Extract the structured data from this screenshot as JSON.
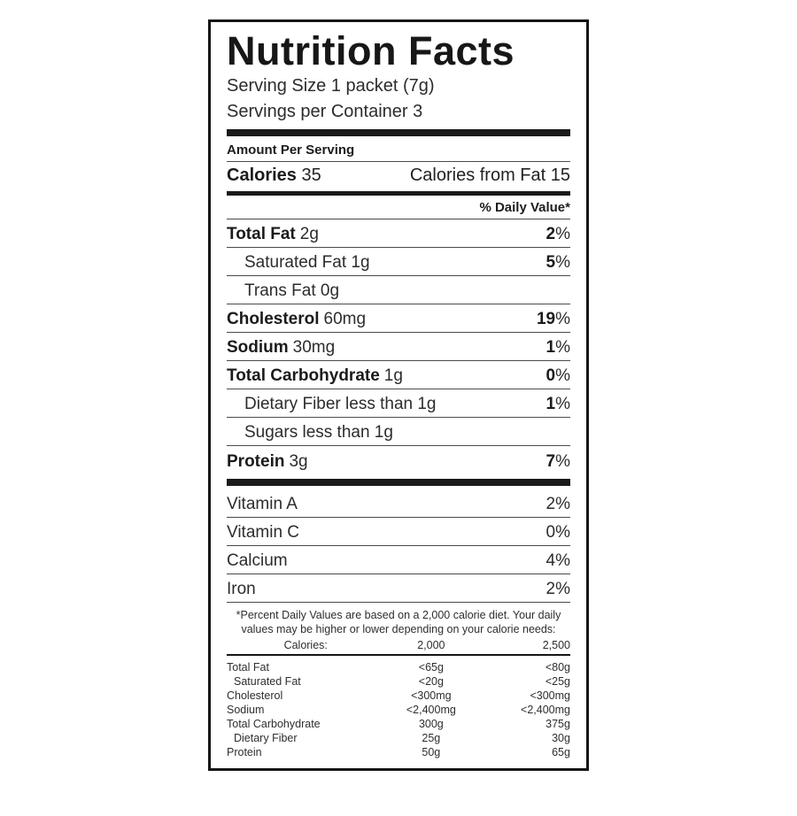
{
  "label": {
    "title": "Nutrition Facts",
    "serving_size": "Serving Size 1 packet (7g)",
    "servings_per_container": "Servings per Container 3",
    "amount_per_serving": "Amount Per Serving",
    "calories": {
      "label": "Calories",
      "value": "35",
      "from_fat": "Calories from Fat 15"
    },
    "daily_value_header": "% Daily Value*",
    "percent_sign": "%",
    "nutrients": [
      {
        "name": "Total Fat",
        "amount": "2g",
        "dv": "2"
      },
      {
        "name": "Saturated Fat",
        "amount": "1g",
        "dv": "5"
      },
      {
        "name": "Trans Fat",
        "amount": "0g",
        "dv": ""
      },
      {
        "name": "Cholesterol",
        "amount": "60mg",
        "dv": "19"
      },
      {
        "name": "Sodium",
        "amount": "30mg",
        "dv": "1"
      },
      {
        "name": "Total Carbohydrate",
        "amount": "1g",
        "dv": "0"
      },
      {
        "name": "Dietary Fiber",
        "amount": "less than 1g",
        "dv": "1"
      },
      {
        "name": "Sugars",
        "amount": "less than 1g",
        "dv": ""
      },
      {
        "name": "Protein",
        "amount": "3g",
        "dv": "7"
      }
    ],
    "vitamins": [
      {
        "name": "Vitamin A",
        "dv": "2%"
      },
      {
        "name": "Vitamin C",
        "dv": "0%"
      },
      {
        "name": "Calcium",
        "dv": "4%"
      },
      {
        "name": "Iron",
        "dv": "2%"
      }
    ],
    "footnote_line1": "*Percent Daily Values are based on a 2,000 calorie diet. Your daily",
    "footnote_line2": "values may be higher or lower depending on your calorie needs:",
    "reference_table": {
      "header": [
        "Calories:",
        "2,000",
        "2,500"
      ],
      "rows": [
        [
          "Total Fat",
          "<65g",
          "<80g"
        ],
        [
          "Saturated Fat",
          "<20g",
          "<25g"
        ],
        [
          "Cholesterol",
          "<300mg",
          "<300mg"
        ],
        [
          "Sodium",
          "<2,400mg",
          "<2,400mg"
        ],
        [
          "Total Carbohydrate",
          "300g",
          "375g"
        ],
        [
          "Dietary Fiber",
          "25g",
          "30g"
        ],
        [
          "Protein",
          "50g",
          "65g"
        ]
      ]
    }
  }
}
